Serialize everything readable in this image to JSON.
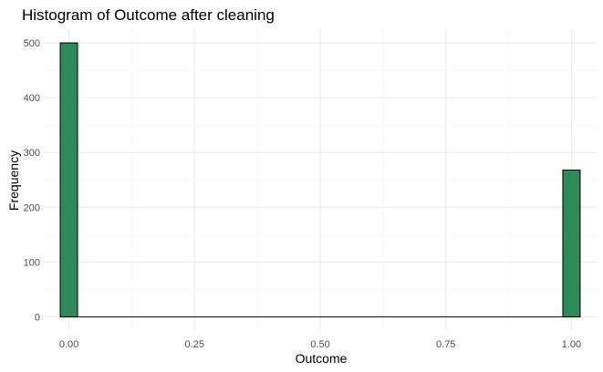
{
  "chart_data": {
    "type": "bar",
    "title": "Histogram of Outcome after cleaning",
    "xlabel": "Outcome",
    "ylabel": "Frequency",
    "xlim": [
      -0.05,
      1.05
    ],
    "ylim": [
      -24,
      525
    ],
    "x_ticks": [
      0,
      0.25,
      0.5,
      0.75,
      1
    ],
    "x_tick_labels": [
      "0.00",
      "0.25",
      "0.50",
      "0.75",
      "1.00"
    ],
    "y_ticks": [
      0,
      100,
      200,
      300,
      400,
      500
    ],
    "y_tick_labels": [
      "0",
      "100",
      "200",
      "300",
      "400",
      "500"
    ],
    "bins": 30,
    "bin_width": 0.0345,
    "bin_centers": [
      0,
      1
    ],
    "values": [
      500,
      268
    ],
    "grid": true,
    "bar_color": "#2e8b57",
    "bar_outline": "#000000"
  }
}
